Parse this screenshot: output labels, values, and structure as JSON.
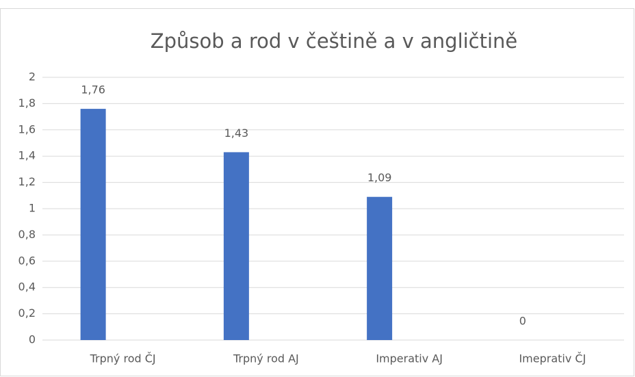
{
  "chart_data": {
    "type": "bar",
    "title": "Způsob a rod v češtině a v angličtině",
    "categories": [
      "Trpný rod ČJ",
      "Trpný rod AJ",
      "Imperativ AJ",
      "Imeprativ ČJ"
    ],
    "values": [
      1.76,
      1.43,
      1.09,
      0
    ],
    "value_labels": [
      "1,76",
      "1,43",
      "1,09",
      "0"
    ],
    "color": "#4472c4",
    "ylim": [
      0,
      2
    ],
    "yticks": [
      0,
      {
        "value": 0.2,
        "label": "0,2"
      },
      {
        "value": 0.4,
        "label": "0,4"
      },
      {
        "value": 0.6,
        "label": "0,6"
      },
      {
        "value": 0.8,
        "label": "0,8"
      },
      1,
      {
        "value": 1.2,
        "label": "1,2"
      },
      {
        "value": 1.4,
        "label": "1,4"
      },
      {
        "value": 1.6,
        "label": "1,6"
      },
      {
        "value": 1.8,
        "label": "1,8"
      },
      2
    ],
    "grid": true
  }
}
